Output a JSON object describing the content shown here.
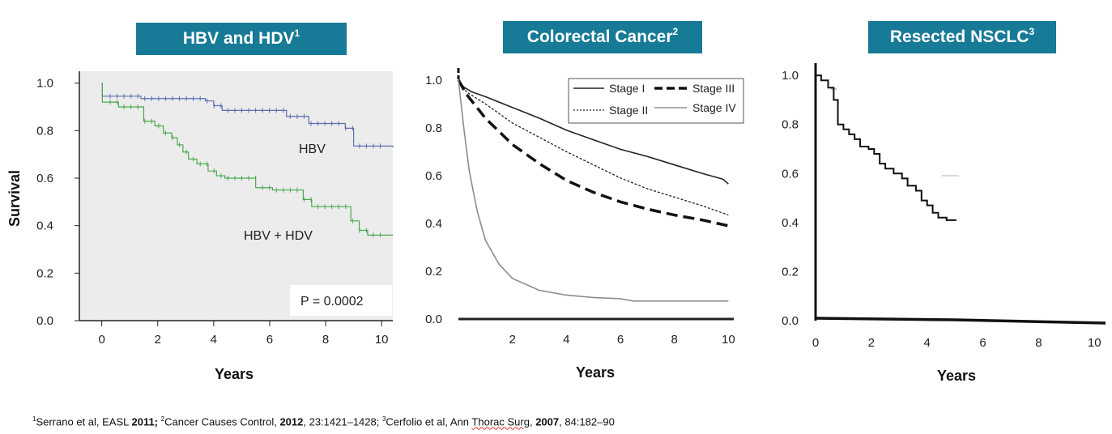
{
  "panels": [
    {
      "title": "HBV and HDV",
      "sup": "1"
    },
    {
      "title": "Colorectal Cancer",
      "sup": "2"
    },
    {
      "title": "Resected NSCLC",
      "sup": "3"
    }
  ],
  "ylabel": "Survival",
  "xlabel": "Years",
  "footnote": {
    "s1": "1",
    "ref1": "Serrano et al, EASL ",
    "year1": "2011;",
    "s2": "2",
    "ref2": "Cancer Causes Control, ",
    "year2": "2012",
    "ref2b": ", 23:1421–1428; ",
    "s3": "3",
    "ref3": "Cerfolio et al, Ann ",
    "ref3u": "Thorac Surg",
    "ref3b": ", ",
    "year3": "2007",
    "ref3c": ", 84:182–90"
  },
  "chart_data": [
    {
      "type": "line",
      "title": "HBV and HDV",
      "xlabel": "Years",
      "ylabel": "Survival",
      "xlim": [
        -0.8,
        10.4
      ],
      "ylim": [
        0,
        1.05
      ],
      "xticks": [
        0,
        2,
        4,
        6,
        8,
        10
      ],
      "yticks": [
        "0.0",
        "0.2",
        "0.4",
        "0.6",
        "0.8",
        "1.0"
      ],
      "annotations": [
        "HBV",
        "HBV + HDV",
        "P = 0.0002"
      ],
      "series": [
        {
          "name": "HBV",
          "color": "#5a6fb0",
          "x": [
            0,
            0.02,
            1.4,
            3.7,
            4.0,
            4.3,
            6.6,
            7.4,
            8.7,
            9.0,
            10.4
          ],
          "y": [
            1.0,
            0.945,
            0.935,
            0.925,
            0.905,
            0.885,
            0.86,
            0.83,
            0.81,
            0.735,
            0.73
          ]
        },
        {
          "name": "HBV + HDV",
          "color": "#4aa84e",
          "x": [
            0,
            0.02,
            0.6,
            1.5,
            1.9,
            2.2,
            2.5,
            2.7,
            2.9,
            3.1,
            3.4,
            3.8,
            4.1,
            4.4,
            5.5,
            6.1,
            7.2,
            7.5,
            8.9,
            9.2,
            9.5,
            10.4
          ],
          "y": [
            1.0,
            0.92,
            0.9,
            0.84,
            0.82,
            0.79,
            0.77,
            0.74,
            0.71,
            0.68,
            0.66,
            0.63,
            0.61,
            0.6,
            0.56,
            0.55,
            0.51,
            0.48,
            0.42,
            0.38,
            0.36,
            0.36
          ]
        }
      ]
    },
    {
      "type": "line",
      "title": "Colorectal Cancer",
      "xlabel": "Years",
      "xlim": [
        0,
        10.2
      ],
      "ylim": [
        0,
        1.05
      ],
      "xticks": [
        2,
        4,
        6,
        8,
        10
      ],
      "yticks": [
        "0.0",
        "0.2",
        "0.4",
        "0.6",
        "0.8",
        "1.0"
      ],
      "series": [
        {
          "name": "Stage I",
          "style": "solid",
          "color": "#222",
          "x": [
            0,
            0.2,
            0.5,
            1,
            2,
            3,
            4,
            5,
            6,
            7,
            8,
            9,
            9.8,
            10
          ],
          "y": [
            1.0,
            0.97,
            0.95,
            0.93,
            0.885,
            0.84,
            0.79,
            0.75,
            0.71,
            0.68,
            0.645,
            0.61,
            0.585,
            0.565
          ]
        },
        {
          "name": "Stage II",
          "style": "dotted",
          "color": "#222",
          "x": [
            0,
            0.3,
            1,
            2,
            3,
            4,
            5,
            6,
            7,
            8,
            9,
            10
          ],
          "y": [
            1.0,
            0.95,
            0.9,
            0.82,
            0.76,
            0.7,
            0.645,
            0.59,
            0.545,
            0.51,
            0.475,
            0.435
          ]
        },
        {
          "name": "Stage III",
          "style": "dashed",
          "color": "#111",
          "x": [
            0,
            0.3,
            1,
            2,
            3,
            4,
            5,
            6,
            7,
            8,
            9,
            10
          ],
          "y": [
            1.0,
            0.94,
            0.84,
            0.73,
            0.65,
            0.58,
            0.53,
            0.49,
            0.46,
            0.435,
            0.415,
            0.39
          ]
        },
        {
          "name": "Stage IV",
          "style": "solid",
          "color": "#8d8d8d",
          "x": [
            0,
            0.2,
            0.4,
            0.7,
            1,
            1.5,
            2,
            3,
            4,
            5,
            6,
            6.5,
            10
          ],
          "y": [
            1.0,
            0.8,
            0.62,
            0.45,
            0.33,
            0.23,
            0.17,
            0.12,
            0.1,
            0.09,
            0.085,
            0.075,
            0.075
          ]
        }
      ]
    },
    {
      "type": "line",
      "title": "Resected NSCLC",
      "xlabel": "Years",
      "xlim": [
        0,
        10.4
      ],
      "ylim": [
        0,
        1.05
      ],
      "xticks": [
        0,
        2,
        4,
        6,
        8,
        10
      ],
      "yticks": [
        "0.0",
        "0.2",
        "0.4",
        "0.6",
        "0.8",
        "1.0"
      ],
      "series": [
        {
          "name": "Resected NSCLC",
          "style": "solid",
          "color": "#111",
          "x": [
            0,
            0.2,
            0.45,
            0.65,
            0.8,
            1.0,
            1.2,
            1.4,
            1.6,
            1.9,
            2.1,
            2.3,
            2.5,
            2.8,
            3.1,
            3.3,
            3.6,
            3.8,
            4.0,
            4.2,
            4.4,
            4.7,
            5.05
          ],
          "y": [
            1.0,
            0.98,
            0.95,
            0.9,
            0.8,
            0.78,
            0.76,
            0.74,
            0.71,
            0.7,
            0.68,
            0.64,
            0.62,
            0.6,
            0.58,
            0.55,
            0.53,
            0.49,
            0.47,
            0.44,
            0.42,
            0.41,
            0.41
          ]
        }
      ]
    }
  ]
}
